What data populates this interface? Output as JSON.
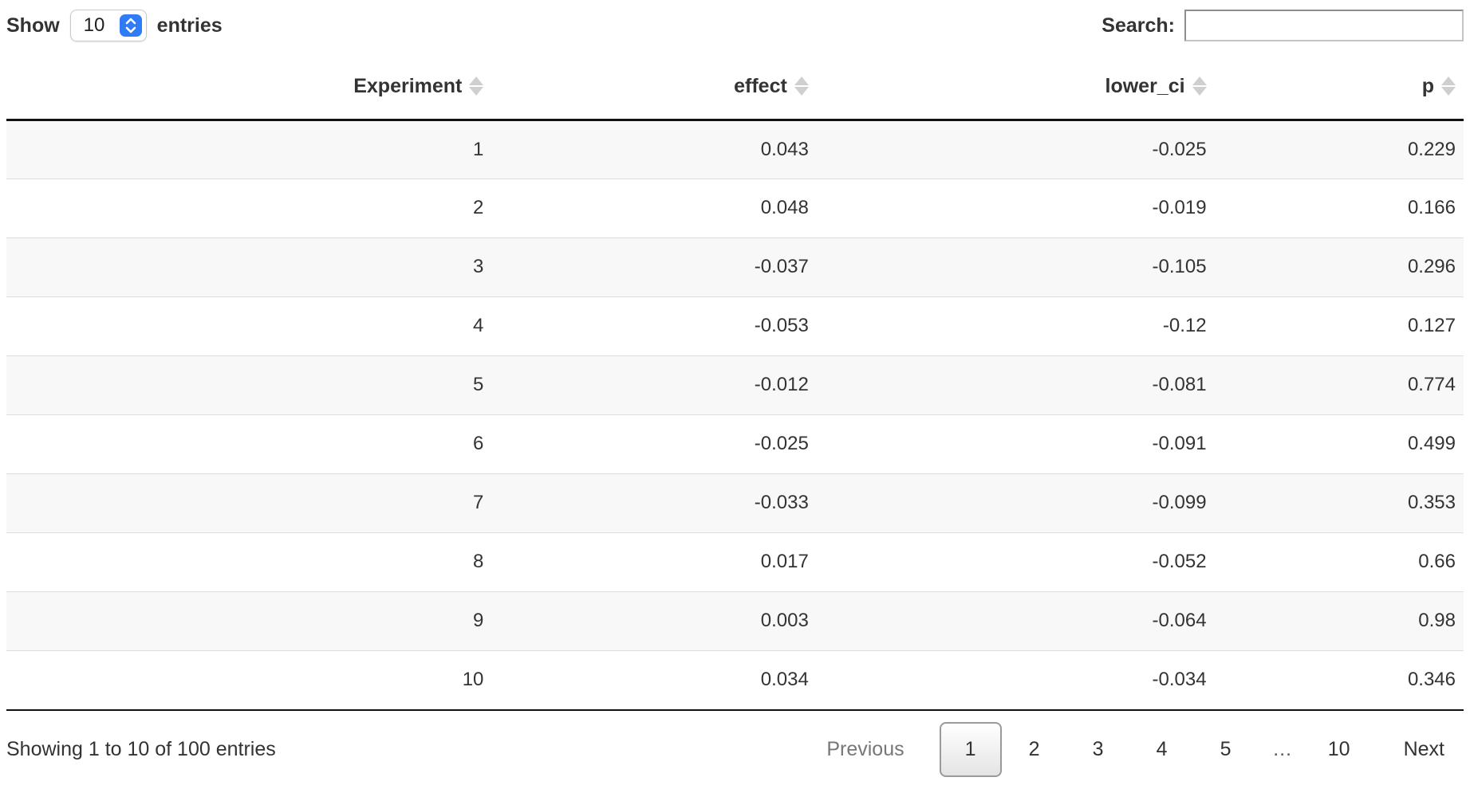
{
  "length_control": {
    "show_label": "Show",
    "entries_label": "entries",
    "selected_value": "10"
  },
  "search": {
    "label": "Search:",
    "value": ""
  },
  "table": {
    "columns": [
      {
        "label": "Experiment"
      },
      {
        "label": "effect"
      },
      {
        "label": "lower_ci"
      },
      {
        "label": "p"
      }
    ],
    "rows": [
      [
        "1",
        "0.043",
        "-0.025",
        "0.229"
      ],
      [
        "2",
        "0.048",
        "-0.019",
        "0.166"
      ],
      [
        "3",
        "-0.037",
        "-0.105",
        "0.296"
      ],
      [
        "4",
        "-0.053",
        "-0.12",
        "0.127"
      ],
      [
        "5",
        "-0.012",
        "-0.081",
        "0.774"
      ],
      [
        "6",
        "-0.025",
        "-0.091",
        "0.499"
      ],
      [
        "7",
        "-0.033",
        "-0.099",
        "0.353"
      ],
      [
        "8",
        "0.017",
        "-0.052",
        "0.66"
      ],
      [
        "9",
        "0.003",
        "-0.064",
        "0.98"
      ],
      [
        "10",
        "0.034",
        "-0.034",
        "0.346"
      ]
    ]
  },
  "footer": {
    "info": "Showing 1 to 10 of 100 entries",
    "pagination": {
      "previous_label": "Previous",
      "next_label": "Next",
      "pages": [
        {
          "label": "1",
          "current": true
        },
        {
          "label": "2"
        },
        {
          "label": "3"
        },
        {
          "label": "4"
        },
        {
          "label": "5"
        },
        {
          "label": "…",
          "ellipsis": true
        },
        {
          "label": "10"
        }
      ]
    }
  },
  "icons": {
    "select_stepper": "up-down-chevrons-icon",
    "column_sort": "sort-arrows-icon"
  },
  "colors": {
    "accent_blue": "#2f7cf6",
    "stripe_row": "#f8f8f8",
    "header_border": "#111111",
    "row_border": "#dddddd",
    "sort_icon": "#cfcfcf",
    "disabled_text": "#777777",
    "text": "#333333"
  }
}
